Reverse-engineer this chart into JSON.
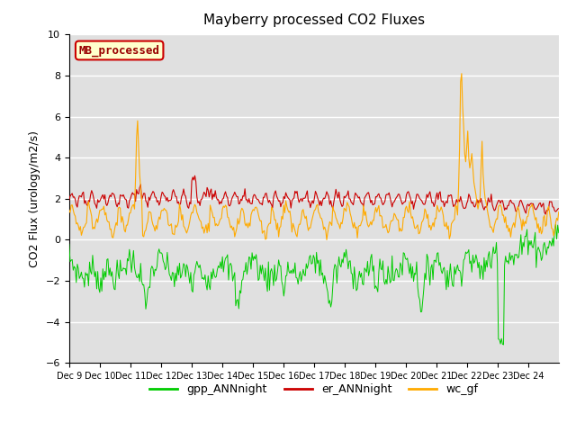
{
  "title": "Mayberry processed CO2 Fluxes",
  "ylabel": "CO2 Flux (urology/m2/s)",
  "ylim": [
    -6,
    10
  ],
  "yticks": [
    -6,
    -4,
    -2,
    0,
    2,
    4,
    6,
    8,
    10
  ],
  "xticklabels": [
    "Dec 9",
    "Dec 10",
    "Dec 11",
    "Dec 12",
    "Dec 13",
    "Dec 14",
    "Dec 15",
    "Dec 16",
    "Dec 17",
    "Dec 18",
    "Dec 19",
    "Dec 20",
    "Dec 21",
    "Dec 22",
    "Dec 23",
    "Dec 24"
  ],
  "legend_label": "MB_processed",
  "series_labels": [
    "gpp_ANNnight",
    "er_ANNnight",
    "wc_gf"
  ],
  "colors": {
    "gpp_ANNnight": "#00cc00",
    "er_ANNnight": "#cc0000",
    "wc_gf": "#ffaa00"
  },
  "plot_bg": "#e0e0e0",
  "fig_bg": "#ffffff",
  "legend_box_facecolor": "#ffffcc",
  "legend_box_edgecolor": "#cc0000",
  "legend_text_color": "#990000",
  "grid_color": "#ffffff",
  "title_fontsize": 11,
  "tick_fontsize": 8,
  "ylabel_fontsize": 9,
  "n_points": 480,
  "seed": 7
}
